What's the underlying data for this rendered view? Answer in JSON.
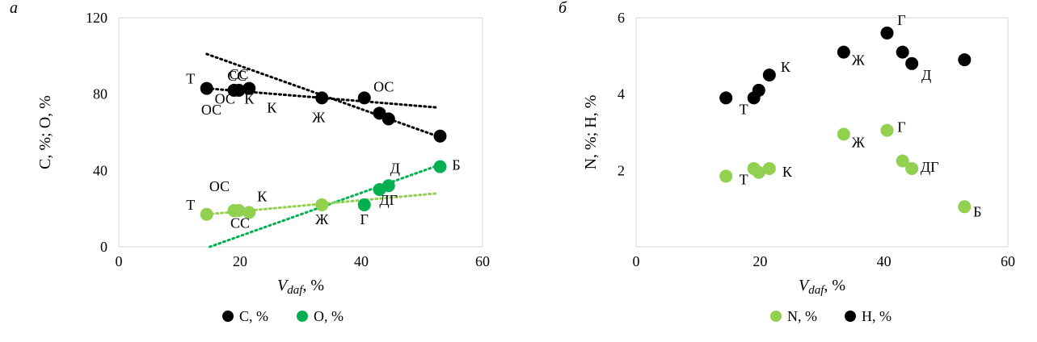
{
  "chart_data": [
    {
      "panel_label": "а",
      "type": "scatter",
      "xlabel_main": "V",
      "xlabel_sub": "daf",
      "xlabel_unit": ", %",
      "ylabel": "C, %; O, %",
      "xlim": [
        0,
        60
      ],
      "ylim": [
        0,
        120
      ],
      "xticks": [
        "0",
        "20",
        "40",
        "60"
      ],
      "yticks": [
        "0",
        "40",
        "80",
        "120"
      ],
      "grid": false,
      "legend_position": "bottom",
      "series": [
        {
          "name": "C, %",
          "color": "#000000",
          "points": [
            {
              "x": 14.5,
              "y": 83,
              "label": "Т"
            },
            {
              "x": 19.0,
              "y": 82,
              "label": "ОС"
            },
            {
              "x": 19.8,
              "y": 82,
              "label": "СС"
            },
            {
              "x": 21.5,
              "y": 83,
              "label": "К"
            },
            {
              "x": 33.5,
              "y": 78,
              "label": "Ж"
            },
            {
              "x": 40.5,
              "y": 78,
              "label": "ОС"
            },
            {
              "x": 43.0,
              "y": 70,
              "label": ""
            },
            {
              "x": 44.5,
              "y": 67,
              "label": ""
            },
            {
              "x": 53.0,
              "y": 58,
              "label": ""
            }
          ],
          "trend": {
            "x1": 14.5,
            "y1": 83,
            "x2": 52.5,
            "y2": 73
          }
        },
        {
          "name": "O, %",
          "color": "#00b050",
          "points": [
            {
              "x": 14.5,
              "y": 17,
              "label": "Т"
            },
            {
              "x": 19.0,
              "y": 19,
              "label": "ОС"
            },
            {
              "x": 19.8,
              "y": 19,
              "label": ""
            },
            {
              "x": 21.5,
              "y": 18,
              "label": "К"
            },
            {
              "x": 33.5,
              "y": 22,
              "label": "Ж"
            },
            {
              "x": 40.5,
              "y": 22,
              "label": "Г"
            },
            {
              "x": 43.0,
              "y": 30,
              "label": ""
            },
            {
              "x": 44.5,
              "y": 32,
              "label": "Д"
            },
            {
              "x": 53.0,
              "y": 42,
              "label": "Б"
            }
          ],
          "trend": {
            "x1": 14.5,
            "y1": 17,
            "x2": 52.5,
            "y2": 28
          }
        }
      ],
      "extra_trends": [
        {
          "color": "#000000",
          "x1": 14.5,
          "y1": 101,
          "x2": 52.5,
          "y2": 58
        },
        {
          "color": "#00b050",
          "x1": 15.0,
          "y1": 0,
          "x2": 53.0,
          "y2": 43
        }
      ],
      "extra_labels": [
        {
          "text": "СС",
          "x": 20.0,
          "y": 10,
          "color_series": "O, %"
        },
        {
          "text": "ДГ",
          "x": 44.5,
          "y": 22,
          "color_series": "O, %"
        },
        {
          "text": "К",
          "x": 21.5,
          "y": 75,
          "color_series": "C, %"
        },
        {
          "text": "ОС",
          "x": 17.5,
          "y": 75,
          "color_series": "C, %"
        },
        {
          "text": "СС",
          "x": 19.5,
          "y": 87,
          "color_series": "C, %"
        }
      ],
      "legend": [
        {
          "name": "C, %",
          "color": "#000000"
        },
        {
          "name": "O, %",
          "color": "#00b050"
        }
      ]
    },
    {
      "panel_label": "б",
      "type": "scatter",
      "xlabel_main": "V",
      "xlabel_sub": "daf",
      "xlabel_unit": ", %",
      "ylabel": "N, %; H, %",
      "xlim": [
        0,
        60
      ],
      "ylim": [
        0,
        6
      ],
      "xticks": [
        "0",
        "20",
        "40",
        "60"
      ],
      "yticks": [
        "2",
        "4",
        "6"
      ],
      "grid": false,
      "legend_position": "bottom",
      "series": [
        {
          "name": "N, %",
          "color": "#92d050",
          "points": [
            {
              "x": 14.5,
              "y": 1.85,
              "label": "Т"
            },
            {
              "x": 19.0,
              "y": 2.05,
              "label": ""
            },
            {
              "x": 19.8,
              "y": 1.95,
              "label": ""
            },
            {
              "x": 21.5,
              "y": 2.05,
              "label": "К"
            },
            {
              "x": 33.5,
              "y": 2.95,
              "label": "Ж"
            },
            {
              "x": 40.5,
              "y": 3.05,
              "label": "Г"
            },
            {
              "x": 43.0,
              "y": 2.25,
              "label": ""
            },
            {
              "x": 44.5,
              "y": 2.05,
              "label": "ДГ"
            },
            {
              "x": 53.0,
              "y": 1.05,
              "label": "Б"
            }
          ]
        },
        {
          "name": "H, %",
          "color": "#000000",
          "points": [
            {
              "x": 14.5,
              "y": 3.9,
              "label": "Т"
            },
            {
              "x": 19.0,
              "y": 3.9,
              "label": ""
            },
            {
              "x": 19.8,
              "y": 4.1,
              "label": ""
            },
            {
              "x": 21.5,
              "y": 4.5,
              "label": "К"
            },
            {
              "x": 33.5,
              "y": 5.1,
              "label": "Ж"
            },
            {
              "x": 40.5,
              "y": 5.6,
              "label": "Г"
            },
            {
              "x": 43.0,
              "y": 5.1,
              "label": ""
            },
            {
              "x": 44.5,
              "y": 4.8,
              "label": "Д"
            },
            {
              "x": 53.0,
              "y": 4.9,
              "label": ""
            }
          ]
        }
      ],
      "legend": [
        {
          "name": "N, %",
          "color": "#92d050"
        },
        {
          "name": "H, %",
          "color": "#000000"
        }
      ]
    }
  ]
}
